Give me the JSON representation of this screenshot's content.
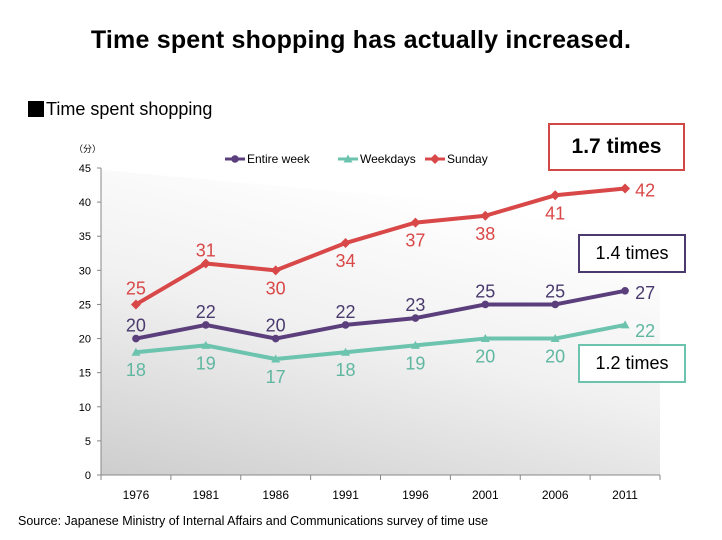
{
  "title": "Time spent shopping has actually increased.",
  "subtitle": "Time spent shopping",
  "source": "Source: Japanese Ministry of Internal Affairs and Communications survey of time use",
  "callouts": [
    {
      "label": "1.7 times",
      "color": "#d04848"
    },
    {
      "label": "1.4 times",
      "color": "#4a3a6e"
    },
    {
      "label": "1.2 times",
      "color": "#6cc3ae"
    }
  ],
  "chart_data": {
    "type": "line",
    "unit_label": "（分）",
    "categories": [
      "1976",
      "1981",
      "1986",
      "1991",
      "1996",
      "2001",
      "2006",
      "2011"
    ],
    "ylim": [
      0,
      45
    ],
    "yticks": [
      0,
      5,
      10,
      15,
      20,
      25,
      30,
      35,
      40,
      45
    ],
    "legend_position": "top",
    "series": [
      {
        "name": "Entire week",
        "color": "#5b3f7c",
        "marker": "circle",
        "values": [
          20,
          22,
          20,
          22,
          23,
          25,
          25,
          27
        ]
      },
      {
        "name": "Weekdays",
        "color": "#6cc3ae",
        "marker": "triangle",
        "values": [
          18,
          19,
          17,
          18,
          19,
          20,
          20,
          22
        ]
      },
      {
        "name": "Sunday",
        "color": "#d94848",
        "marker": "diamond",
        "values": [
          25,
          31,
          30,
          34,
          37,
          38,
          41,
          42
        ]
      }
    ]
  }
}
